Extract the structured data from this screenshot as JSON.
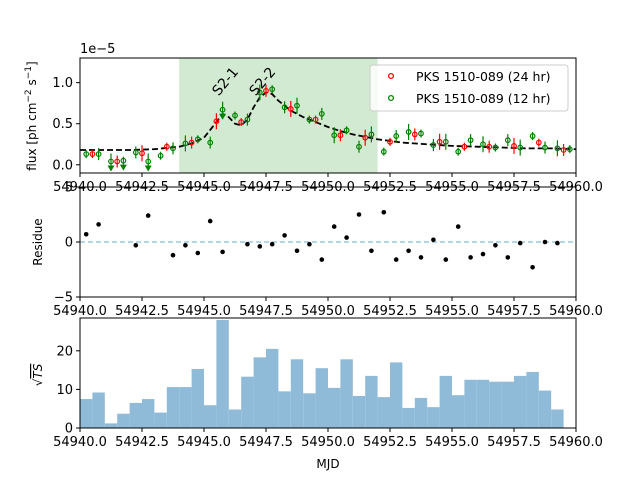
{
  "chart_data": [
    {
      "type": "scatter",
      "panel": "light-curve",
      "ylabel": "flux [ph cm$^{-2}$ s$^{-1}$]",
      "offset_label": "1e−5",
      "xlim": [
        54940,
        54960
      ],
      "ylim": [
        -0.1,
        1.3
      ],
      "xticks": [
        "54940.0",
        "54942.5",
        "54945.0",
        "54947.5",
        "54950.0",
        "54952.5",
        "54955.0",
        "54957.5",
        "54960.0"
      ],
      "yticks": [
        "0.0",
        "0.5",
        "1.0"
      ],
      "shaded_region": {
        "x": [
          54944.0,
          54952.0
        ],
        "color": "#2ca02c"
      },
      "annotations": [
        {
          "text": "S2-1",
          "x": 54946.0,
          "y": 0.98
        },
        {
          "text": "S2-2",
          "x": 54947.5,
          "y": 0.98
        }
      ],
      "legend": {
        "placement": "top-right",
        "entries": [
          "PKS 1510-089 (24 hr)",
          "PKS 1510-089 (12 hr)"
        ]
      },
      "series": [
        {
          "name": "PKS 1510-089 (24 hr)",
          "color": "#ff0000",
          "x": [
            54940.5,
            54941.5,
            54942.5,
            54943.5,
            54944.5,
            54945.5,
            54946.5,
            54947.5,
            54948.5,
            54949.5,
            54950.5,
            54951.5,
            54952.5,
            54953.5,
            54954.5,
            54955.5,
            54956.5,
            54957.5,
            54958.5,
            54959.5
          ],
          "y": [
            0.13,
            0.04,
            0.14,
            0.22,
            0.27,
            0.53,
            0.52,
            0.9,
            0.68,
            0.55,
            0.36,
            0.33,
            0.28,
            0.37,
            0.28,
            0.22,
            0.22,
            0.23,
            0.27,
            0.18
          ]
        },
        {
          "name": "PKS 1510-089 (12 hr)",
          "color": "#008000",
          "x": [
            54940.25,
            54940.75,
            54941.25,
            54941.75,
            54942.25,
            54942.75,
            54943.25,
            54943.75,
            54944.25,
            54944.75,
            54945.25,
            54945.75,
            54946.25,
            54946.75,
            54947.25,
            54947.75,
            54948.25,
            54948.75,
            54949.25,
            54949.75,
            54950.25,
            54950.75,
            54951.25,
            54951.75,
            54952.25,
            54952.75,
            54953.25,
            54953.75,
            54954.25,
            54954.75,
            54955.25,
            54955.75,
            54956.25,
            54956.75,
            54957.25,
            54957.75,
            54958.25,
            54958.75,
            54959.25,
            54959.75
          ],
          "y": [
            0.13,
            0.13,
            0.04,
            0.05,
            0.15,
            0.04,
            0.11,
            0.2,
            0.26,
            0.31,
            0.27,
            0.67,
            0.6,
            0.55,
            0.88,
            0.92,
            0.7,
            0.72,
            0.55,
            0.62,
            0.36,
            0.42,
            0.22,
            0.37,
            0.16,
            0.35,
            0.4,
            0.38,
            0.24,
            0.28,
            0.16,
            0.3,
            0.25,
            0.21,
            0.3,
            0.21,
            0.35,
            0.21,
            0.2,
            0.19
          ],
          "upper_limits_x": [
            54941.25,
            54941.75,
            54942.75,
            54945.75
          ]
        },
        {
          "name": "",
          "style": "dashed",
          "color": "#000000",
          "x": [
            54940,
            54941,
            54942,
            54943,
            54944,
            54944.5,
            54945,
            54945.5,
            54945.75,
            54946,
            54946.25,
            54946.5,
            54946.75,
            54947,
            54947.25,
            54947.5,
            54947.75,
            54948,
            54948.5,
            54949,
            54949.5,
            54950,
            54950.5,
            54951,
            54952,
            54953,
            54954,
            54955,
            54956,
            54957,
            54958,
            54959,
            54960
          ],
          "y": [
            0.18,
            0.18,
            0.18,
            0.19,
            0.22,
            0.26,
            0.33,
            0.52,
            0.62,
            0.58,
            0.5,
            0.48,
            0.55,
            0.7,
            0.82,
            0.88,
            0.86,
            0.78,
            0.66,
            0.58,
            0.52,
            0.46,
            0.41,
            0.37,
            0.31,
            0.27,
            0.25,
            0.23,
            0.22,
            0.21,
            0.2,
            0.2,
            0.19
          ]
        }
      ]
    },
    {
      "type": "scatter",
      "panel": "residue",
      "ylabel": "Residue",
      "xlim": [
        54940,
        54960
      ],
      "ylim": [
        -5,
        5
      ],
      "xticks": [
        "54940.0",
        "54942.5",
        "54945.0",
        "54947.5",
        "54950.0",
        "54952.5",
        "54955.0",
        "54957.5",
        "54960.0"
      ],
      "yticks": [
        "−5",
        "0",
        "5"
      ],
      "reference_line": {
        "y": 0,
        "color": "#9ec8dc"
      },
      "series": [
        {
          "name": "",
          "color": "#000000",
          "x": [
            54940.25,
            54940.75,
            54942.25,
            54942.75,
            54943.75,
            54944.25,
            54944.75,
            54945.25,
            54945.75,
            54946.75,
            54947.25,
            54947.75,
            54948.25,
            54948.75,
            54949.25,
            54949.75,
            54950.25,
            54950.75,
            54951.25,
            54951.75,
            54952.25,
            54952.75,
            54953.25,
            54953.75,
            54954.25,
            54954.75,
            54955.25,
            54955.75,
            54956.25,
            54956.75,
            54957.25,
            54957.75,
            54958.25,
            54958.75,
            54959.25
          ],
          "y": [
            0.7,
            1.6,
            -0.3,
            2.4,
            -1.2,
            -0.3,
            -1.0,
            1.9,
            -0.9,
            -0.2,
            -0.4,
            -0.2,
            0.6,
            -0.8,
            -0.2,
            -1.6,
            1.4,
            0.4,
            2.5,
            -0.8,
            2.7,
            -1.6,
            -0.8,
            -1.4,
            0.2,
            -1.6,
            1.4,
            -1.4,
            -1.1,
            -0.3,
            -1.4,
            -0.1,
            -2.3,
            0.0,
            -0.1
          ]
        }
      ]
    },
    {
      "type": "bar",
      "panel": "ts",
      "xlabel": "MJD",
      "ylabel": "$\\sqrt{TS}$",
      "xlim": [
        54940,
        54960
      ],
      "ylim": [
        0,
        28.5
      ],
      "xticks": [
        "54940.0",
        "54942.5",
        "54945.0",
        "54947.5",
        "54950.0",
        "54952.5",
        "54955.0",
        "54957.5",
        "54960.0"
      ],
      "yticks": [
        "0",
        "10",
        "20"
      ],
      "bar_width": 0.5,
      "color": "#8fbbd9",
      "x": [
        54940.0,
        54940.5,
        54941.0,
        54941.5,
        54942.0,
        54942.5,
        54943.0,
        54943.5,
        54944.0,
        54944.5,
        54945.0,
        54945.5,
        54946.0,
        54946.5,
        54947.0,
        54947.5,
        54948.0,
        54948.5,
        54949.0,
        54949.5,
        54950.0,
        54950.5,
        54951.0,
        54951.5,
        54952.0,
        54952.5,
        54953.0,
        54953.5,
        54954.0,
        54954.5,
        54955.0,
        54955.5,
        54956.0,
        54956.5,
        54957.0,
        54957.5,
        54958.0,
        54958.5,
        54959.0,
        54959.5
      ],
      "values": [
        7.5,
        9.2,
        1.2,
        3.7,
        6.5,
        7.5,
        4.0,
        10.6,
        10.6,
        15.3,
        5.9,
        28.0,
        4.8,
        13.3,
        18.3,
        20.5,
        9.5,
        17.8,
        9.0,
        15.5,
        10.4,
        17.8,
        8.3,
        13.5,
        8.0,
        17.0,
        5.2,
        7.8,
        5.4,
        13.5,
        8.5,
        12.5,
        12.5,
        12.0,
        12.0,
        13.5,
        14.5,
        9.7,
        4.8,
        0.0
      ]
    }
  ]
}
